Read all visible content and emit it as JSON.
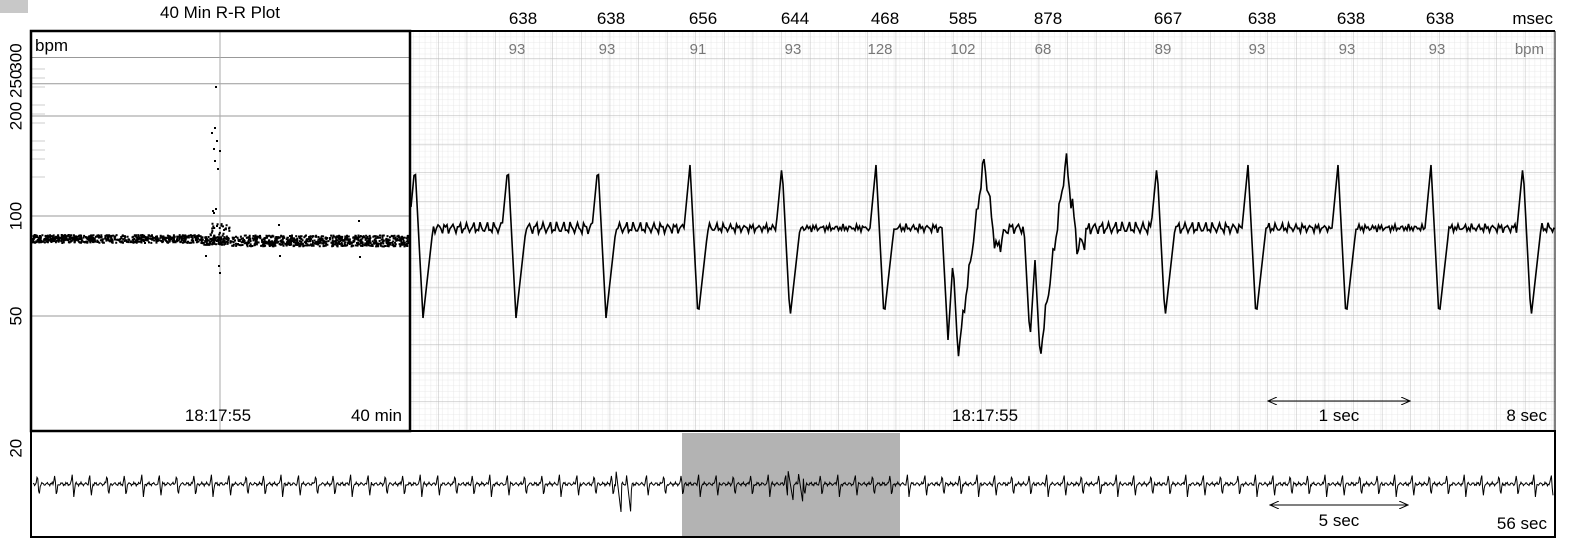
{
  "rr_plot": {
    "title": "40 Min R-R Plot",
    "y_unit": "bpm",
    "yticks": [
      20,
      50,
      100,
      200,
      250,
      300
    ],
    "time": "18:17:55",
    "span": "40 min"
  },
  "strip": {
    "intervals": [
      {
        "msec": 638,
        "bpm": 93
      },
      {
        "msec": 638,
        "bpm": 93
      },
      {
        "msec": 656,
        "bpm": 91
      },
      {
        "msec": 644,
        "bpm": 93
      },
      {
        "msec": 468,
        "bpm": 128
      },
      {
        "msec": 585,
        "bpm": 102
      },
      {
        "msec": 878,
        "bpm": 68
      },
      {
        "msec": 667,
        "bpm": 89
      },
      {
        "msec": 638,
        "bpm": 93
      },
      {
        "msec": 638,
        "bpm": 93
      },
      {
        "msec": 638,
        "bpm": 93
      }
    ],
    "msec_unit": "msec",
    "bpm_unit": "bpm",
    "time": "18:17:55",
    "scale": "1 sec",
    "span": "8 sec"
  },
  "overview": {
    "scale": "5 sec",
    "span": "56 sec"
  }
}
